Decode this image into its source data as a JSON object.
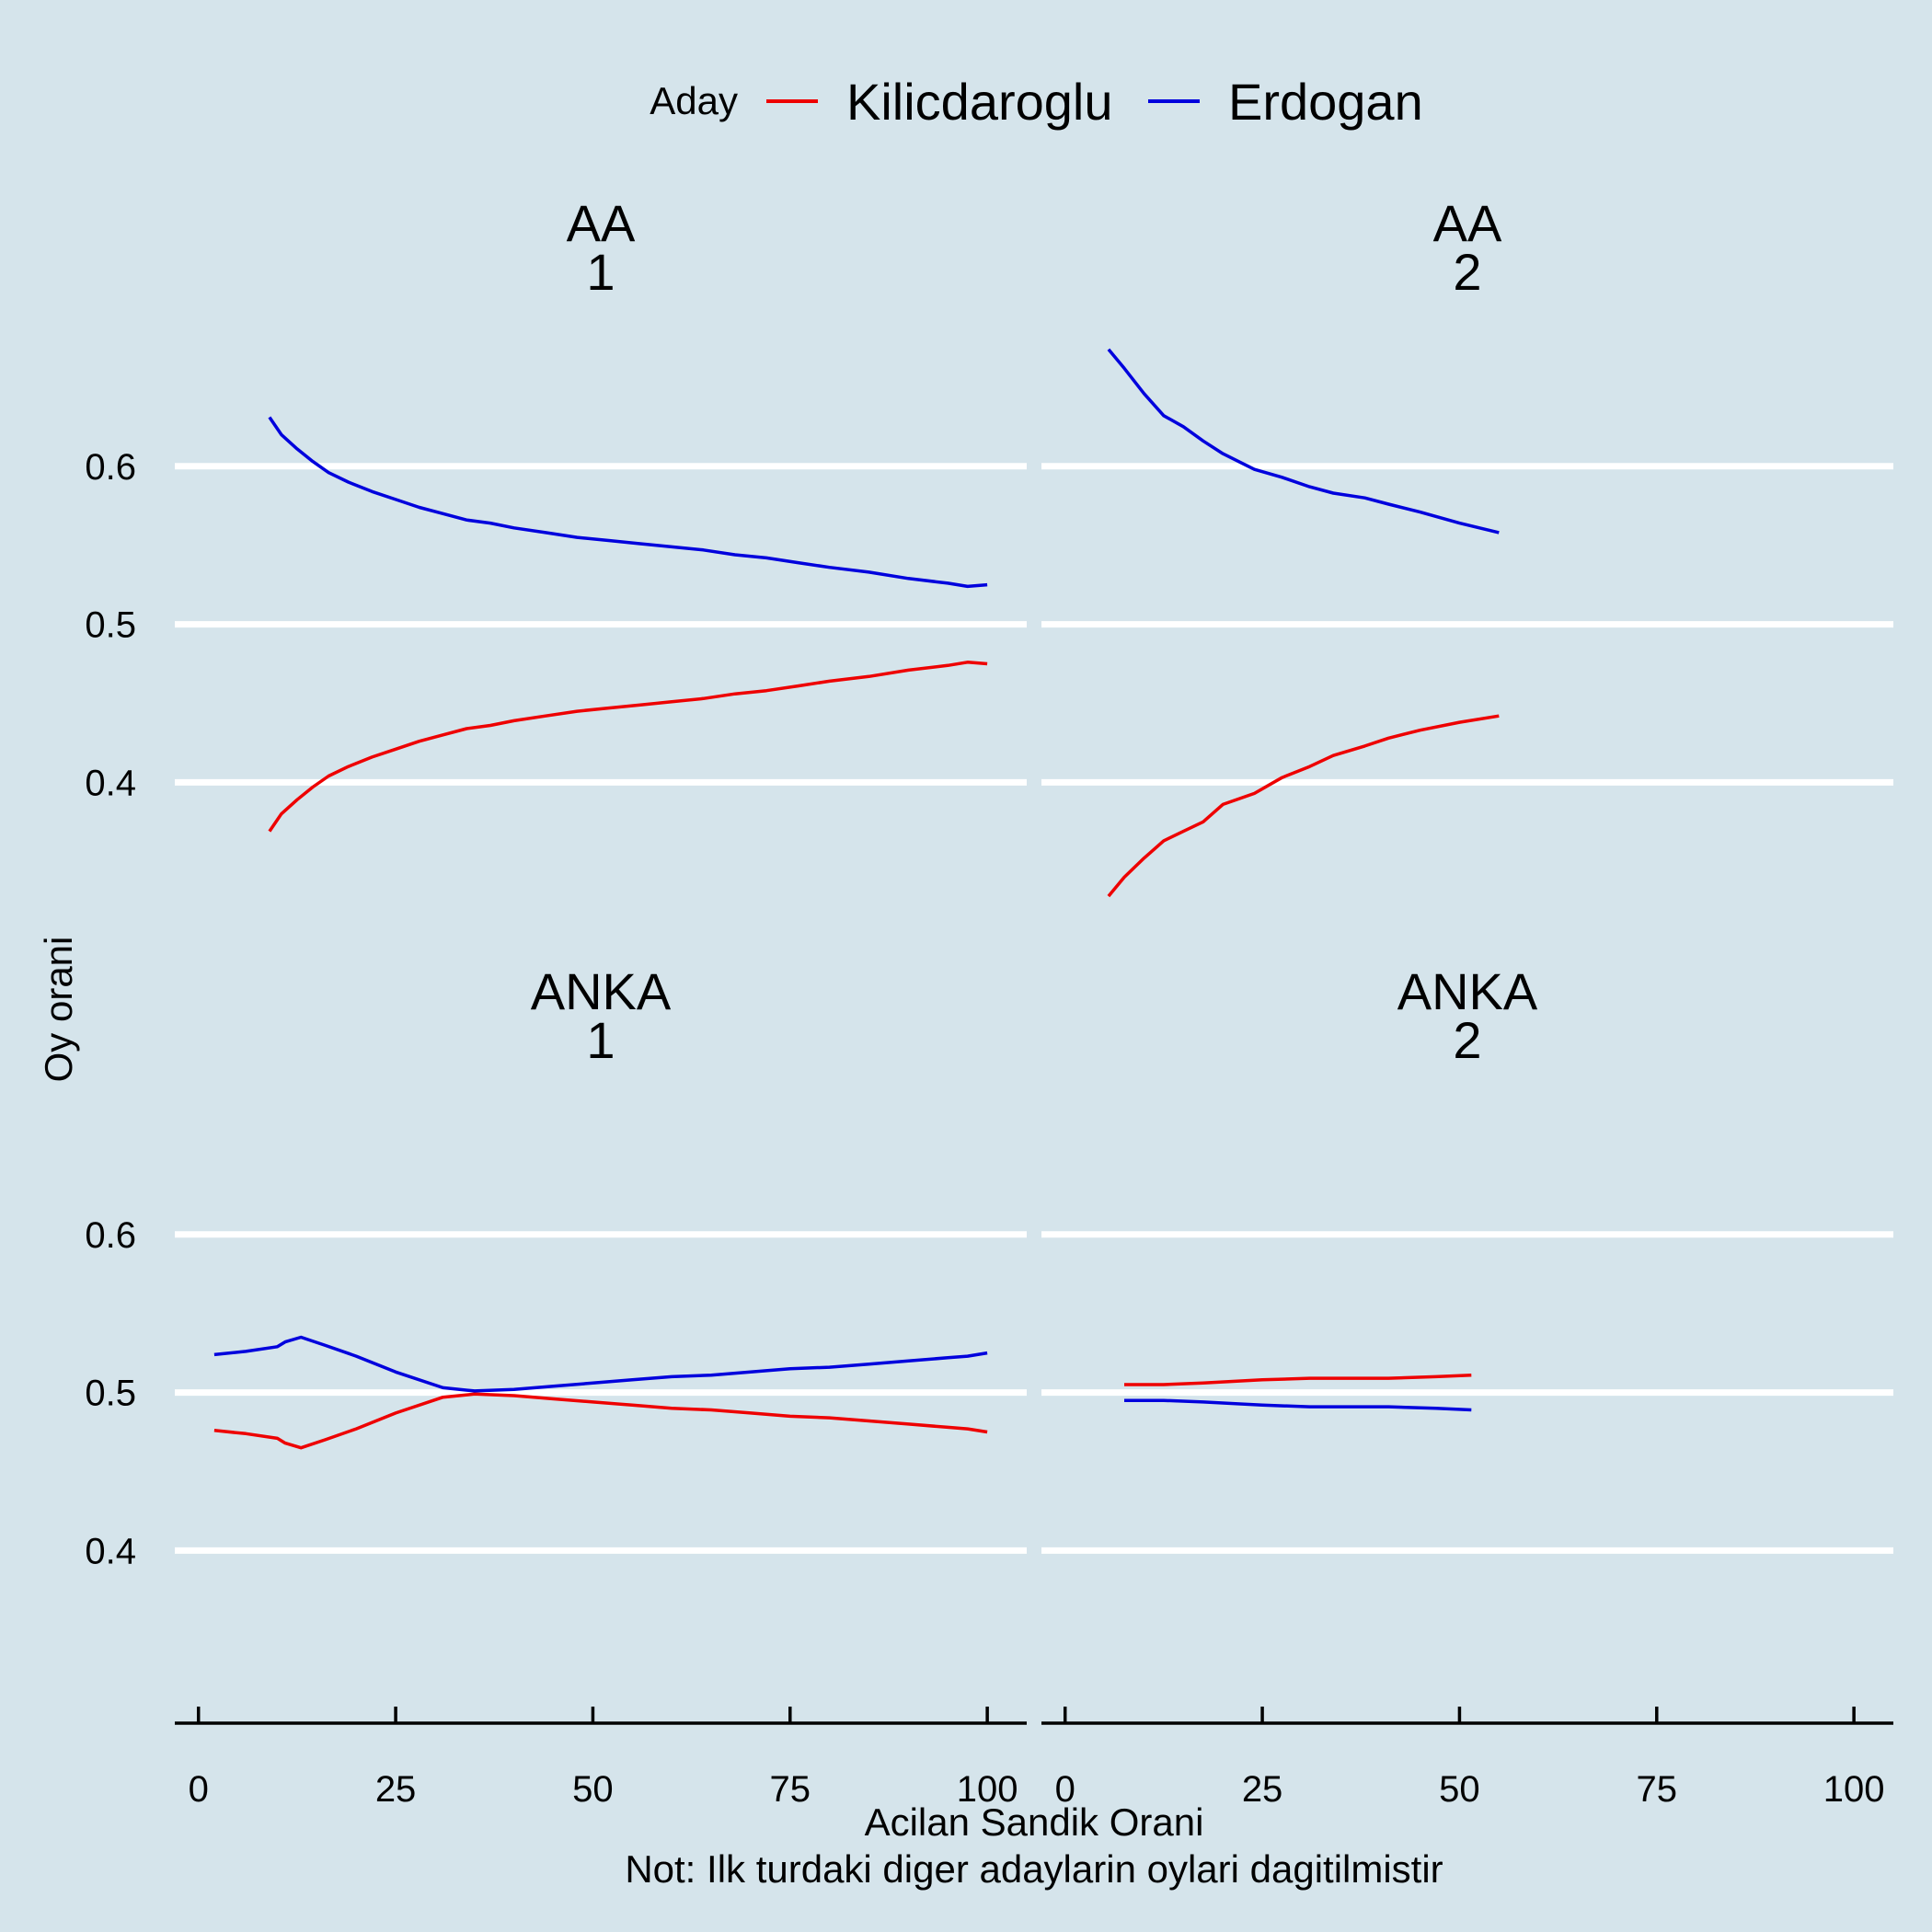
{
  "legend": {
    "title": "Aday",
    "items": [
      {
        "label": "Kilicdaroglu",
        "color": "#ee0000"
      },
      {
        "label": "Erdogan",
        "color": "#0000dd"
      }
    ]
  },
  "axes": {
    "x_title": "Acilan Sandik Orani",
    "y_title": "Oy orani",
    "note": "Not: Ilk turdaki diger adaylarin oylari dagitilmistir",
    "x_ticks": [
      0,
      25,
      50,
      75,
      100
    ],
    "y_ticks": [
      "0.4",
      "0.5",
      "0.6"
    ]
  },
  "chart_data": {
    "type": "line",
    "xlabel": "Acilan Sandik Orani",
    "ylabel": "Oy orani",
    "xlim": [
      -3,
      105
    ],
    "ylim": [
      0.31,
      0.7
    ],
    "grid": "horizontal major lines",
    "legend_position": "top",
    "facets": [
      {
        "source": "AA",
        "round": "1",
        "series": [
          {
            "name": "Kilicdaroglu",
            "color": "#ee0000",
            "x": [
              9,
              10.5,
              12.5,
              14.5,
              16.5,
              19,
              22,
              25,
              28,
              31,
              34,
              37,
              40,
              44,
              48,
              52,
              56,
              60,
              64,
              68,
              72,
              76,
              80,
              85,
              90,
              95,
              97.5,
              100
            ],
            "y": [
              0.369,
              0.38,
              0.389,
              0.397,
              0.404,
              0.41,
              0.416,
              0.421,
              0.426,
              0.43,
              0.434,
              0.436,
              0.439,
              0.442,
              0.445,
              0.447,
              0.449,
              0.451,
              0.453,
              0.456,
              0.458,
              0.461,
              0.464,
              0.467,
              0.471,
              0.474,
              0.476,
              0.475
            ]
          },
          {
            "name": "Erdogan",
            "color": "#0000dd",
            "x": [
              9,
              10.5,
              12.5,
              14.5,
              16.5,
              19,
              22,
              25,
              28,
              31,
              34,
              37,
              40,
              44,
              48,
              52,
              56,
              60,
              64,
              68,
              72,
              76,
              80,
              85,
              90,
              95,
              97.5,
              100
            ],
            "y": [
              0.631,
              0.62,
              0.611,
              0.603,
              0.596,
              0.59,
              0.584,
              0.579,
              0.574,
              0.57,
              0.566,
              0.564,
              0.561,
              0.558,
              0.555,
              0.553,
              0.551,
              0.549,
              0.547,
              0.544,
              0.542,
              0.539,
              0.536,
              0.533,
              0.529,
              0.526,
              0.524,
              0.525
            ]
          }
        ]
      },
      {
        "source": "AA",
        "round": "2",
        "series": [
          {
            "name": "Kilicdaroglu",
            "color": "#ee0000",
            "x": [
              5.5,
              7.5,
              10,
              12.5,
              15,
              17.5,
              20,
              24,
              27.5,
              31,
              34,
              38,
              41,
              45,
              50,
              55
            ],
            "y": [
              0.328,
              0.34,
              0.352,
              0.363,
              0.369,
              0.375,
              0.386,
              0.393,
              0.403,
              0.41,
              0.417,
              0.423,
              0.428,
              0.433,
              0.438,
              0.442
            ]
          },
          {
            "name": "Erdogan",
            "color": "#0000dd",
            "x": [
              5.5,
              7.5,
              10,
              12.5,
              15,
              17.5,
              20,
              24,
              27.5,
              31,
              34,
              38,
              41,
              45,
              50,
              55
            ],
            "y": [
              0.674,
              0.662,
              0.646,
              0.632,
              0.625,
              0.616,
              0.608,
              0.598,
              0.593,
              0.587,
              0.583,
              0.58,
              0.576,
              0.571,
              0.564,
              0.558
            ]
          }
        ]
      },
      {
        "source": "ANKA",
        "round": "1",
        "series": [
          {
            "name": "Kilicdaroglu",
            "color": "#ee0000",
            "x": [
              2,
              6,
              10,
              11,
              13,
              16,
              20,
              25,
              31,
              35,
              40,
              45,
              50,
              55,
              60,
              65,
              70,
              75,
              80,
              85,
              90,
              95,
              97.5,
              100
            ],
            "y": [
              0.476,
              0.474,
              0.471,
              0.468,
              0.465,
              0.47,
              0.477,
              0.487,
              0.497,
              0.499,
              0.498,
              0.496,
              0.494,
              0.492,
              0.49,
              0.489,
              0.487,
              0.485,
              0.484,
              0.482,
              0.48,
              0.478,
              0.477,
              0.475
            ]
          },
          {
            "name": "Erdogan",
            "color": "#0000dd",
            "x": [
              2,
              6,
              10,
              11,
              13,
              16,
              20,
              25,
              31,
              35,
              40,
              45,
              50,
              55,
              60,
              65,
              70,
              75,
              80,
              85,
              90,
              95,
              97.5,
              100
            ],
            "y": [
              0.524,
              0.526,
              0.529,
              0.532,
              0.535,
              0.53,
              0.523,
              0.513,
              0.503,
              0.501,
              0.502,
              0.504,
              0.506,
              0.508,
              0.51,
              0.511,
              0.513,
              0.515,
              0.516,
              0.518,
              0.52,
              0.522,
              0.523,
              0.525
            ]
          }
        ]
      },
      {
        "source": "ANKA",
        "round": "2",
        "series": [
          {
            "name": "Kilicdaroglu",
            "color": "#ee0000",
            "x": [
              7.5,
              12.5,
              17.5,
              25,
              31,
              37,
              41,
              47,
              51.5
            ],
            "y": [
              0.505,
              0.505,
              0.506,
              0.508,
              0.509,
              0.509,
              0.509,
              0.51,
              0.511
            ]
          },
          {
            "name": "Erdogan",
            "color": "#0000dd",
            "x": [
              7.5,
              12.5,
              17.5,
              25,
              31,
              37,
              41,
              47,
              51.5
            ],
            "y": [
              0.495,
              0.495,
              0.494,
              0.492,
              0.491,
              0.491,
              0.491,
              0.49,
              0.489
            ]
          }
        ]
      }
    ]
  }
}
